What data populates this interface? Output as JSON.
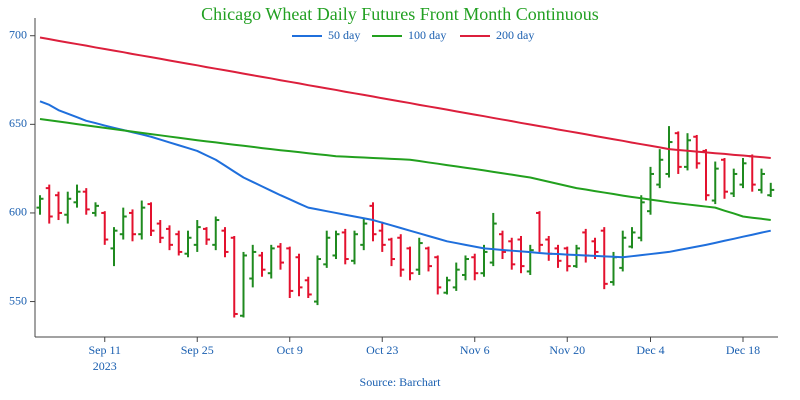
{
  "chart_data": {
    "type": "ohlc",
    "title": "Chicago Wheat Daily Futures Front Month Continuous",
    "source": "Source: Barchart",
    "x_year_label": "2023",
    "x": [
      "2023-08-30",
      "2023-08-31",
      "2023-09-01",
      "2023-09-05",
      "2023-09-06",
      "2023-09-07",
      "2023-09-08",
      "2023-09-11",
      "2023-09-12",
      "2023-09-13",
      "2023-09-14",
      "2023-09-15",
      "2023-09-18",
      "2023-09-19",
      "2023-09-20",
      "2023-09-21",
      "2023-09-22",
      "2023-09-25",
      "2023-09-26",
      "2023-09-27",
      "2023-09-28",
      "2023-09-29",
      "2023-10-02",
      "2023-10-03",
      "2023-10-04",
      "2023-10-05",
      "2023-10-06",
      "2023-10-09",
      "2023-10-10",
      "2023-10-11",
      "2023-10-12",
      "2023-10-13",
      "2023-10-16",
      "2023-10-17",
      "2023-10-18",
      "2023-10-19",
      "2023-10-20",
      "2023-10-23",
      "2023-10-24",
      "2023-10-25",
      "2023-10-26",
      "2023-10-27",
      "2023-10-30",
      "2023-10-31",
      "2023-11-01",
      "2023-11-02",
      "2023-11-03",
      "2023-11-06",
      "2023-11-07",
      "2023-11-08",
      "2023-11-09",
      "2023-11-10",
      "2023-11-13",
      "2023-11-14",
      "2023-11-15",
      "2023-11-16",
      "2023-11-17",
      "2023-11-20",
      "2023-11-21",
      "2023-11-22",
      "2023-11-24",
      "2023-11-27",
      "2023-11-28",
      "2023-11-29",
      "2023-11-30",
      "2023-12-01",
      "2023-12-04",
      "2023-12-05",
      "2023-12-06",
      "2023-12-07",
      "2023-12-08",
      "2023-12-11",
      "2023-12-12",
      "2023-12-13",
      "2023-12-14",
      "2023-12-15",
      "2023-12-18",
      "2023-12-19",
      "2023-12-20",
      "2023-12-21"
    ],
    "open": [
      603,
      614,
      610,
      599,
      606,
      612,
      600,
      600,
      580,
      588,
      600,
      588,
      605,
      594,
      591,
      588,
      577,
      582,
      591,
      582,
      590,
      586,
      542,
      563,
      576,
      566,
      581,
      580,
      575,
      562,
      550,
      571,
      576,
      589,
      573,
      582,
      604,
      590,
      585,
      586,
      580,
      568,
      580,
      575,
      555,
      558,
      565,
      575,
      566,
      572,
      588,
      584,
      585,
      567,
      600,
      585,
      580,
      580,
      570,
      589,
      584,
      590,
      561,
      569,
      581,
      586,
      601,
      616,
      622,
      645,
      626,
      643,
      635,
      607,
      630,
      611,
      616,
      632,
      613,
      610
    ],
    "high": [
      610,
      616,
      612,
      612,
      616,
      614,
      606,
      601,
      592,
      603,
      602,
      607,
      606,
      596,
      593,
      590,
      590,
      596,
      592,
      598,
      592,
      587,
      578,
      582,
      578,
      582,
      583,
      581,
      577,
      564,
      576,
      590,
      590,
      591,
      590,
      597,
      606,
      595,
      586,
      588,
      581,
      586,
      581,
      576,
      564,
      572,
      576,
      577,
      582,
      600,
      590,
      586,
      587,
      582,
      601,
      587,
      582,
      581,
      582,
      591,
      586,
      592,
      578,
      590,
      592,
      610,
      626,
      636,
      649,
      646,
      645,
      644,
      636,
      629,
      631,
      625,
      631,
      633,
      625,
      617
    ],
    "low": [
      599,
      594,
      596,
      594,
      603,
      599,
      598,
      582,
      570,
      585,
      584,
      585,
      587,
      583,
      579,
      576,
      575,
      578,
      582,
      579,
      575,
      541,
      541,
      558,
      564,
      563,
      568,
      552,
      553,
      552,
      548,
      569,
      574,
      571,
      571,
      579,
      584,
      578,
      570,
      564,
      562,
      565,
      567,
      554,
      554,
      556,
      562,
      562,
      564,
      570,
      574,
      568,
      566,
      565,
      578,
      573,
      569,
      567,
      569,
      572,
      574,
      557,
      559,
      567,
      580,
      584,
      599,
      614,
      620,
      622,
      624,
      625,
      607,
      605,
      608,
      609,
      614,
      612,
      611,
      609
    ],
    "close": [
      608,
      598,
      600,
      608,
      612,
      602,
      604,
      585,
      590,
      598,
      588,
      603,
      590,
      586,
      582,
      578,
      586,
      592,
      585,
      596,
      578,
      543,
      576,
      578,
      568,
      580,
      572,
      556,
      558,
      554,
      574,
      586,
      588,
      574,
      588,
      594,
      588,
      582,
      574,
      568,
      566,
      583,
      570,
      558,
      562,
      568,
      574,
      566,
      578,
      594,
      578,
      571,
      570,
      579,
      582,
      577,
      573,
      570,
      580,
      576,
      578,
      560,
      575,
      586,
      589,
      606,
      622,
      630,
      640,
      626,
      641,
      628,
      610,
      625,
      612,
      622,
      628,
      616,
      622,
      613
    ],
    "up_color": "#1f8a1f",
    "down_color": "#e3112e",
    "series": [
      {
        "name": "50 day",
        "color": "#1f6fdc",
        "values": [
          663,
          661,
          658,
          656,
          654,
          652,
          650.7,
          649.3,
          648,
          646.8,
          645.5,
          644.3,
          643,
          641.4,
          639.8,
          638.2,
          636.6,
          635,
          632.5,
          630,
          626.7,
          623.3,
          620,
          617.5,
          615,
          612.5,
          610,
          607.7,
          605.3,
          603,
          602,
          601,
          600,
          599,
          598,
          597,
          596,
          594.5,
          593,
          591.5,
          590,
          588.5,
          587,
          585.5,
          584,
          583,
          582,
          581,
          580,
          579.6,
          579.1,
          578.7,
          578.3,
          577.9,
          577.4,
          577,
          576.8,
          576.5,
          576.3,
          576,
          575.8,
          575.5,
          575.3,
          575,
          575.6,
          576.2,
          576.8,
          577.4,
          578,
          579,
          580,
          581,
          582,
          583.1,
          584.3,
          585.4,
          586.6,
          587.7,
          588.9,
          590
        ]
      },
      {
        "name": "100 day",
        "color": "#22a01e",
        "values": [
          653,
          652.3,
          651.6,
          650.9,
          650.1,
          649.4,
          648.7,
          648,
          647.3,
          646.6,
          645.9,
          645.2,
          644.5,
          643.8,
          643.1,
          642.4,
          641.7,
          641,
          640.4,
          639.8,
          639.1,
          638.5,
          637.9,
          637.3,
          636.6,
          636,
          635.4,
          634.9,
          634.3,
          633.7,
          633.1,
          632.6,
          632,
          631.8,
          631.5,
          631.3,
          631,
          630.8,
          630.5,
          630.3,
          630,
          629.3,
          628.5,
          627.8,
          627,
          626.3,
          625.5,
          624.8,
          624,
          623.2,
          622.4,
          621.6,
          620.8,
          620,
          618.8,
          617.6,
          616.4,
          615.2,
          614,
          613.2,
          612.3,
          611.5,
          610.7,
          609.8,
          609,
          608.3,
          607.5,
          606.8,
          606,
          605.4,
          604.8,
          604.2,
          603.6,
          603,
          601.3,
          599.7,
          598,
          597.3,
          596.7,
          596
        ]
      },
      {
        "name": "200 day",
        "color": "#dc1f3c",
        "values": [
          699,
          698.1,
          697.1,
          696.2,
          695.3,
          694.4,
          693.4,
          692.5,
          691.6,
          690.7,
          689.7,
          688.8,
          687.9,
          687,
          686,
          685.1,
          684.2,
          683.3,
          682.3,
          681.4,
          680.5,
          679.6,
          678.6,
          677.7,
          676.8,
          675.9,
          674.9,
          674,
          673.1,
          672.1,
          671.2,
          670.3,
          669.4,
          668.4,
          667.5,
          666.6,
          665.7,
          664.7,
          663.8,
          662.9,
          662,
          661,
          660.1,
          659.2,
          658.3,
          657.3,
          656.4,
          655.5,
          654.6,
          653.6,
          652.7,
          651.8,
          650.8,
          649.9,
          649,
          648.1,
          647.1,
          646.2,
          645.3,
          644.4,
          643.4,
          642.5,
          641.6,
          640.7,
          639.7,
          638.8,
          637.9,
          637,
          636,
          635.5,
          635.1,
          634.6,
          634.2,
          633.7,
          633.3,
          632.8,
          632.4,
          631.9,
          631.5,
          631
        ]
      }
    ],
    "ylim": [
      530,
      710
    ],
    "yticks": [
      550,
      600,
      650,
      700
    ],
    "xticks": [
      {
        "value": "2023-09-11",
        "label": "Sep 11"
      },
      {
        "value": "2023-09-25",
        "label": "Sep 25"
      },
      {
        "value": "2023-10-09",
        "label": "Oct 9"
      },
      {
        "value": "2023-10-23",
        "label": "Oct 23"
      },
      {
        "value": "2023-11-06",
        "label": "Nov 6"
      },
      {
        "value": "2023-11-20",
        "label": "Nov 20"
      },
      {
        "value": "2023-12-04",
        "label": "Dec 4"
      },
      {
        "value": "2023-12-18",
        "label": "Dec 18"
      }
    ],
    "grid": false,
    "legend": "top"
  }
}
